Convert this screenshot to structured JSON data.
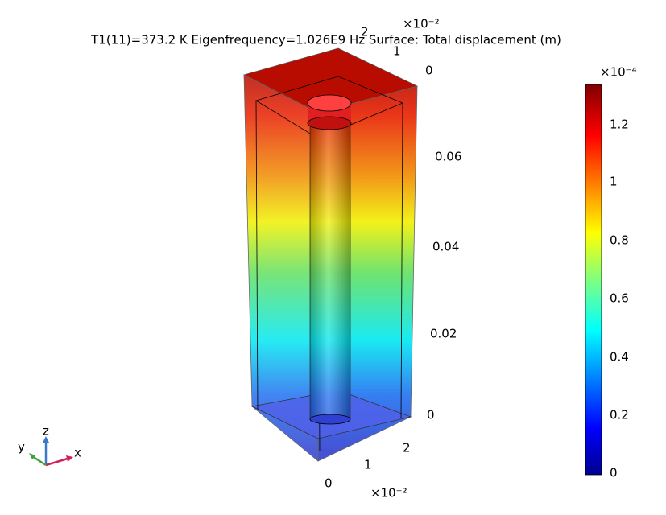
{
  "title": "T1(11)=373.2 K Eigenfrequency=1.026E9 Hz  Surface: Total displacement (m)",
  "z_axis": {
    "ticks": [
      "0.06",
      "0.04",
      "0.02",
      "0"
    ]
  },
  "top_axis": {
    "ticks": [
      "0",
      "1",
      "2"
    ],
    "multiplier": "×10⁻²"
  },
  "bottom_axis": {
    "ticks": [
      "2",
      "1",
      "0"
    ],
    "multiplier": "×10⁻²"
  },
  "colorbar": {
    "multiplier": "×10⁻⁴",
    "ticks": [
      "1.2",
      "1",
      "0.8",
      "0.6",
      "0.4",
      "0.2",
      "0"
    ]
  },
  "triad": {
    "labels": [
      "z",
      "y",
      "x"
    ]
  }
}
